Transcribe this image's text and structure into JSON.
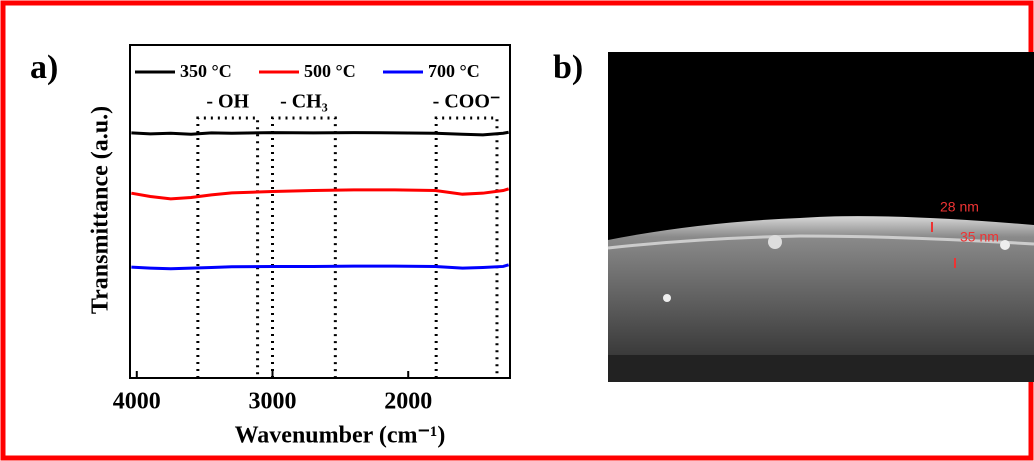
{
  "panel_labels": [
    "a)",
    "b)"
  ],
  "chart_data": {
    "type": "line",
    "x_label": "Wavenumber (cm⁻¹)",
    "y_label": "Transmittance (a.u.)",
    "x": [
      4040,
      3900,
      3750,
      3600,
      3450,
      3300,
      3000,
      2700,
      2400,
      2100,
      1800,
      1600,
      1450,
      1300,
      1260
    ],
    "series": [
      {
        "name": "350 °C",
        "color": "#000000",
        "values": [
          73.6,
          73.3,
          73.5,
          73.2,
          73.6,
          73.5,
          73.7,
          73.6,
          73.7,
          73.6,
          73.5,
          73.2,
          73.0,
          73.5,
          73.8
        ]
      },
      {
        "name": "500 °C",
        "color": "#ff0000",
        "values": [
          55.5,
          54.5,
          53.8,
          54.2,
          55.0,
          55.6,
          56.0,
          56.3,
          56.5,
          56.5,
          56.3,
          55.2,
          55.5,
          56.3,
          56.8
        ]
      },
      {
        "name": "700 °C",
        "color": "#0000ff",
        "values": [
          33.3,
          33.0,
          32.8,
          33.0,
          33.2,
          33.4,
          33.5,
          33.5,
          33.6,
          33.6,
          33.5,
          33.0,
          33.2,
          33.5,
          34.0
        ]
      }
    ],
    "regions": [
      {
        "label": "- OH",
        "range": [
          3550,
          3110
        ]
      },
      {
        "label": "- CH₃",
        "range": [
          3000,
          2537
        ]
      },
      {
        "label": "- COO⁻",
        "range": [
          1794,
          1346
        ]
      }
    ],
    "xlim": [
      4050,
      1250
    ],
    "xticks": [
      4000,
      3000,
      2000
    ],
    "ylim": [
      0,
      100
    ],
    "legend": "top"
  },
  "sem_image": {
    "labels": [
      "28 nm",
      "35 nm"
    ]
  }
}
